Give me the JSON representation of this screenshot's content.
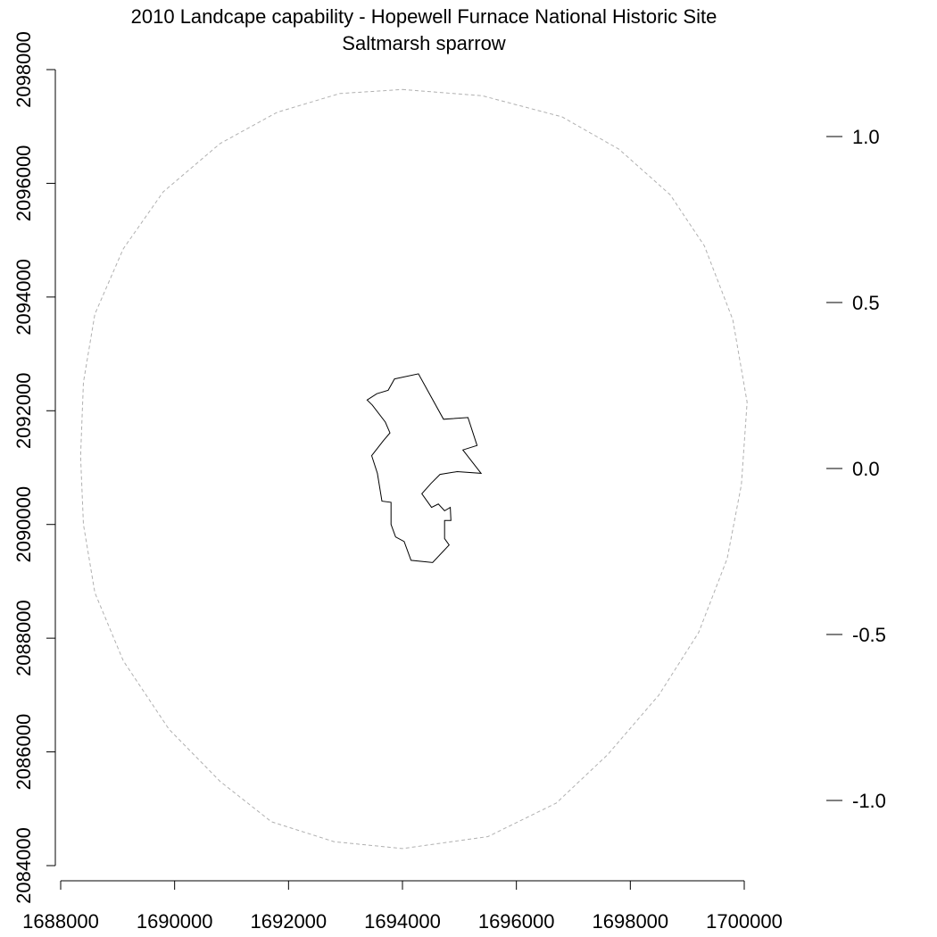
{
  "title": "2010 Landcape capability - Hopewell Furnace National Historic Site",
  "subtitle": "Saltmarsh sparrow",
  "x_axis": {
    "range": [
      1688000,
      1700000
    ],
    "ticks": [
      "1688000",
      "1690000",
      "1692000",
      "1694000",
      "1696000",
      "1698000",
      "1700000"
    ]
  },
  "y_axis": {
    "range": [
      2084000,
      2098000
    ],
    "ticks": [
      "2084000",
      "2086000",
      "2088000",
      "2090000",
      "2092000",
      "2094000",
      "2096000",
      "2098000"
    ]
  },
  "legend_scale": {
    "ticks": [
      "1.0",
      "0.5",
      "0.0",
      "-0.5",
      "-1.0"
    ]
  },
  "map_data": {
    "buffer_style": "dashed grey",
    "buffer_outline": [
      [
        1694000,
        2097650
      ],
      [
        1695400,
        2097540
      ],
      [
        1696800,
        2097170
      ],
      [
        1697800,
        2096600
      ],
      [
        1698700,
        2095800
      ],
      [
        1699300,
        2094900
      ],
      [
        1699800,
        2093600
      ],
      [
        1700050,
        2092150
      ],
      [
        1699950,
        2090700
      ],
      [
        1699700,
        2089400
      ],
      [
        1699200,
        2088100
      ],
      [
        1698500,
        2087000
      ],
      [
        1697600,
        2085950
      ],
      [
        1696700,
        2085100
      ],
      [
        1695500,
        2084510
      ],
      [
        1694000,
        2084300
      ],
      [
        1692800,
        2084420
      ],
      [
        1691700,
        2084770
      ],
      [
        1690800,
        2085480
      ],
      [
        1689900,
        2086400
      ],
      [
        1689100,
        2087600
      ],
      [
        1688600,
        2088800
      ],
      [
        1688400,
        2090000
      ],
      [
        1688350,
        2091200
      ],
      [
        1688400,
        2092500
      ],
      [
        1688600,
        2093700
      ],
      [
        1689100,
        2094850
      ],
      [
        1689800,
        2095850
      ],
      [
        1690800,
        2096700
      ],
      [
        1691800,
        2097250
      ],
      [
        1692900,
        2097580
      ]
    ],
    "park_boundary": [
      [
        1693860,
        2092560
      ],
      [
        1694280,
        2092650
      ],
      [
        1694720,
        2091850
      ],
      [
        1695150,
        2091880
      ],
      [
        1695310,
        2091390
      ],
      [
        1695060,
        2091310
      ],
      [
        1695380,
        2090900
      ],
      [
        1694960,
        2090930
      ],
      [
        1694660,
        2090880
      ],
      [
        1694500,
        2090720
      ],
      [
        1694340,
        2090540
      ],
      [
        1694510,
        2090300
      ],
      [
        1694630,
        2090360
      ],
      [
        1694740,
        2090240
      ],
      [
        1694840,
        2090300
      ],
      [
        1694850,
        2090070
      ],
      [
        1694740,
        2090070
      ],
      [
        1694740,
        2089750
      ],
      [
        1694820,
        2089640
      ],
      [
        1694530,
        2089330
      ],
      [
        1694150,
        2089370
      ],
      [
        1694030,
        2089700
      ],
      [
        1693880,
        2089780
      ],
      [
        1693800,
        2090000
      ],
      [
        1693800,
        2090390
      ],
      [
        1693640,
        2090410
      ],
      [
        1693560,
        2090900
      ],
      [
        1693460,
        2091210
      ],
      [
        1693670,
        2091480
      ],
      [
        1693780,
        2091610
      ],
      [
        1693700,
        2091800
      ],
      [
        1693470,
        2092100
      ],
      [
        1693380,
        2092190
      ],
      [
        1693550,
        2092300
      ],
      [
        1693750,
        2092360
      ],
      [
        1693860,
        2092560
      ]
    ]
  }
}
